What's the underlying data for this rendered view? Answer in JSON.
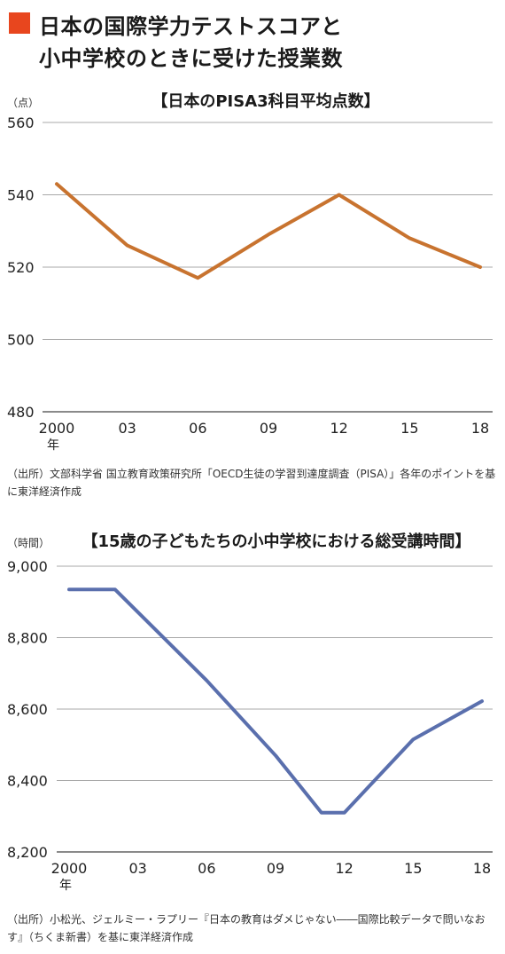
{
  "header": {
    "line1": "日本の国際学力テストスコアと",
    "line2": "小中学校のときに受けた授業数",
    "accent_color": "#e8461e"
  },
  "chart_data": [
    {
      "type": "line",
      "title": "【日本のPISA3科目平均点数】",
      "ylabel": "（点）",
      "categories": [
        "2000",
        "03",
        "06",
        "09",
        "12",
        "15",
        "18"
      ],
      "x_extra_label": "年",
      "ylim": [
        480,
        560
      ],
      "yticks": [
        "560",
        "540",
        "520",
        "500",
        "480"
      ],
      "ytick_values": [
        560,
        540,
        520,
        500,
        480
      ],
      "series": [
        {
          "values": [
            543,
            526,
            517,
            529,
            540,
            528,
            520
          ],
          "color": "#c8732f"
        }
      ],
      "grid": true,
      "source": "（出所）文部科学省 国立教育政策研究所「OECD生徒の学習到達度調査（PISA）」各年のポイントを基に東洋経済作成"
    },
    {
      "type": "line",
      "title": "【15歳の子どもたちの小中学校における総受講時間】",
      "ylabel": "（時間）",
      "categories": [
        "2000",
        "03",
        "06",
        "09",
        "12",
        "15",
        "18"
      ],
      "x_extra_label": "年",
      "ylim": [
        8200,
        9000
      ],
      "yticks": [
        "9,000",
        "8,800",
        "8,600",
        "8,400",
        "8,200"
      ],
      "ytick_values": [
        9000,
        8800,
        8600,
        8400,
        8200
      ],
      "series": [
        {
          "x": [
            2000,
            2002,
            2006,
            2009,
            2011,
            2012,
            2015,
            2018
          ],
          "values": [
            8935,
            8935,
            8680,
            8470,
            8310,
            8310,
            8515,
            8622
          ],
          "color": "#5a6fad"
        }
      ],
      "grid": true,
      "source": "（出所）小松光、ジェルミー・ラプリー『日本の教育はダメじゃない――国際比較データで問いなおす』（ちくま新書）を基に東洋経済作成"
    }
  ]
}
